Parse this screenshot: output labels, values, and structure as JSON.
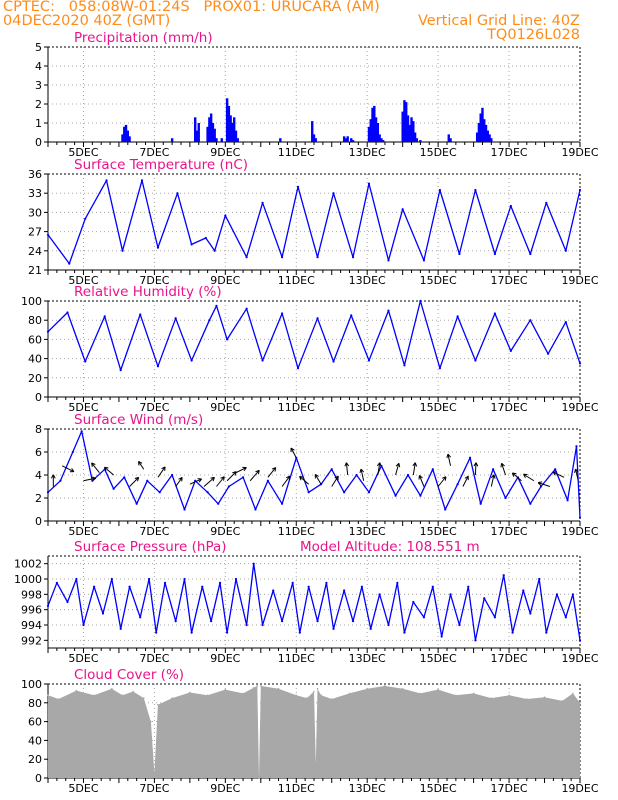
{
  "header": {
    "left_line1": "CPTEC:   058:08W-01:24S   PROX01: URUCARA (AM)",
    "left_line2": "04DEC2020 40Z (GMT)",
    "right_line2": "Vertical Grid Line: 40Z",
    "right_line3": "TQ0126L028"
  },
  "colors": {
    "header": "#ff8c1a",
    "title": "#e8148c",
    "series": "#0000ff",
    "cloud": "#a8a8a8",
    "grid": "#a8a8a8"
  },
  "x_axis": {
    "start_day": 4.0,
    "end_day": 19.0,
    "tick_days": [
      5,
      7,
      9,
      11,
      13,
      15,
      17,
      19
    ],
    "tick_labels": [
      "5DEC",
      "7DEC",
      "9DEC",
      "11DEC",
      "13DEC",
      "15DEC",
      "17DEC",
      "19DEC"
    ]
  },
  "chart_data": [
    {
      "type": "bar",
      "title": "Precipitation (mm/h)",
      "ylim": [
        0,
        5
      ],
      "yticks": [
        0,
        1,
        2,
        3,
        4,
        5
      ],
      "x": [
        6.1,
        6.15,
        6.2,
        6.25,
        6.3,
        7.5,
        8.15,
        8.2,
        8.25,
        8.5,
        8.55,
        8.6,
        8.65,
        8.7,
        8.75,
        8.9,
        9.05,
        9.1,
        9.15,
        9.2,
        9.25,
        9.3,
        9.35,
        10.55,
        11.45,
        11.5,
        11.55,
        12.35,
        12.4,
        12.45,
        12.55,
        12.6,
        13.05,
        13.1,
        13.15,
        13.2,
        13.25,
        13.3,
        13.35,
        13.4,
        13.45,
        14.0,
        14.05,
        14.1,
        14.15,
        14.2,
        14.25,
        14.3,
        14.35,
        14.4,
        14.5,
        15.3,
        15.35,
        16.1,
        16.15,
        16.2,
        16.25,
        16.3,
        16.35,
        16.4,
        16.45,
        16.5
      ],
      "values": [
        0.4,
        0.8,
        0.9,
        0.6,
        0.3,
        0.2,
        1.3,
        0.6,
        1.0,
        0.8,
        1.3,
        1.5,
        1.0,
        0.7,
        0.2,
        0.2,
        2.3,
        1.9,
        1.4,
        1.0,
        1.3,
        0.6,
        0.2,
        0.2,
        1.1,
        0.4,
        0.2,
        0.3,
        0.2,
        0.3,
        0.2,
        0.1,
        0.8,
        1.2,
        1.8,
        1.9,
        1.3,
        1.0,
        0.4,
        0.2,
        0.1,
        1.6,
        2.2,
        2.1,
        1.4,
        0.9,
        1.3,
        1.1,
        0.5,
        0.2,
        0.1,
        0.4,
        0.2,
        0.5,
        1.0,
        1.5,
        1.8,
        1.2,
        0.9,
        0.6,
        0.4,
        0.2
      ]
    },
    {
      "type": "line",
      "title": "Surface Temperature (nC)",
      "ylim": [
        21,
        36
      ],
      "yticks": [
        21,
        24,
        27,
        30,
        33,
        36
      ],
      "x": [
        4.0,
        4.6,
        5.05,
        5.65,
        6.1,
        6.65,
        7.1,
        7.65,
        8.05,
        8.45,
        8.7,
        9.0,
        9.6,
        10.05,
        10.6,
        11.05,
        11.6,
        12.05,
        12.6,
        13.05,
        13.6,
        14.0,
        14.6,
        15.05,
        15.6,
        16.05,
        16.6,
        17.05,
        17.6,
        18.05,
        18.6,
        19.0
      ],
      "values": [
        26.5,
        22.0,
        29.0,
        35.0,
        24.0,
        35.0,
        24.5,
        33.0,
        25.0,
        26.0,
        24.0,
        29.5,
        23.0,
        31.5,
        23.0,
        34.0,
        23.0,
        33.0,
        23.0,
        34.5,
        22.5,
        30.5,
        22.5,
        33.5,
        23.5,
        33.5,
        23.5,
        31.0,
        23.5,
        31.5,
        24.0,
        33.5
      ]
    },
    {
      "type": "line",
      "title": "Relative Humidity (%)",
      "ylim": [
        0,
        100
      ],
      "yticks": [
        0,
        20,
        40,
        60,
        80,
        100
      ],
      "x": [
        4.0,
        4.55,
        5.05,
        5.6,
        6.05,
        6.6,
        7.1,
        7.6,
        8.05,
        8.55,
        8.75,
        9.05,
        9.6,
        10.05,
        10.6,
        11.05,
        11.6,
        12.05,
        12.55,
        13.05,
        13.6,
        14.05,
        14.5,
        15.05,
        15.55,
        16.05,
        16.6,
        17.05,
        17.6,
        18.1,
        18.6,
        19.0
      ],
      "values": [
        68.0,
        88.0,
        37.0,
        84.0,
        28.0,
        86.0,
        32.0,
        82.0,
        38.0,
        80.0,
        95.0,
        60.0,
        92.0,
        38.0,
        87.0,
        30.0,
        82.0,
        37.0,
        85.0,
        38.0,
        90.0,
        33.0,
        100.0,
        30.0,
        84.0,
        38.0,
        87.0,
        48.0,
        80.0,
        45.0,
        78.0,
        35.0
      ]
    },
    {
      "type": "line",
      "title": "Surface Wind (m/s)",
      "ylim": [
        0,
        8
      ],
      "yticks": [
        0,
        2,
        4,
        6,
        8
      ],
      "x": [
        4.0,
        4.35,
        4.7,
        4.95,
        5.25,
        5.6,
        5.85,
        6.15,
        6.5,
        6.8,
        7.15,
        7.5,
        7.85,
        8.15,
        8.5,
        8.8,
        9.1,
        9.5,
        9.85,
        10.2,
        10.6,
        11.0,
        11.35,
        11.7,
        12.0,
        12.35,
        12.7,
        13.05,
        13.4,
        13.8,
        14.15,
        14.5,
        14.85,
        15.2,
        15.55,
        15.9,
        16.2,
        16.55,
        16.9,
        17.25,
        17.6,
        17.9,
        18.3,
        18.65,
        18.9,
        19.0
      ],
      "values": [
        2.5,
        3.5,
        6.0,
        7.8,
        3.5,
        4.5,
        2.8,
        3.8,
        1.5,
        3.5,
        2.5,
        4.0,
        1.0,
        3.5,
        2.5,
        1.5,
        3.0,
        3.8,
        1.0,
        3.5,
        1.5,
        5.5,
        2.5,
        3.2,
        4.5,
        2.5,
        4.0,
        2.5,
        4.8,
        2.2,
        4.0,
        2.2,
        4.5,
        1.0,
        3.2,
        5.5,
        1.5,
        4.5,
        2.0,
        3.8,
        1.5,
        3.0,
        4.5,
        1.8,
        6.5,
        0.3
      ],
      "arrows": [
        [
          4.15,
          3.0,
          0.0,
          0.9
        ],
        [
          4.4,
          4.8,
          0.9,
          -0.45
        ],
        [
          5.0,
          3.5,
          0.95,
          0.2
        ],
        [
          5.45,
          4.2,
          -0.6,
          0.75
        ],
        [
          5.85,
          4.0,
          -0.7,
          0.6
        ],
        [
          6.3,
          3.0,
          0.7,
          0.7
        ],
        [
          6.7,
          4.5,
          -0.4,
          0.6
        ],
        [
          7.1,
          3.8,
          0.55,
          0.8
        ],
        [
          7.6,
          3.0,
          0.5,
          0.7
        ],
        [
          8.0,
          3.2,
          0.9,
          0.4
        ],
        [
          8.4,
          3.0,
          0.8,
          0.7
        ],
        [
          8.75,
          3.0,
          0.6,
          0.75
        ],
        [
          9.05,
          3.5,
          0.7,
          0.7
        ],
        [
          9.3,
          4.2,
          0.8,
          0.4
        ],
        [
          9.7,
          3.5,
          0.7,
          0.8
        ],
        [
          10.2,
          3.8,
          0.6,
          0.75
        ],
        [
          10.6,
          3.0,
          0.6,
          0.8
        ],
        [
          11.0,
          5.5,
          -0.4,
          0.75
        ],
        [
          11.35,
          3.2,
          -0.7,
          0.6
        ],
        [
          11.7,
          3.2,
          -0.45,
          0.75
        ],
        [
          12.0,
          3.0,
          0.5,
          0.8
        ],
        [
          12.45,
          4.0,
          -0.1,
          0.95
        ],
        [
          12.9,
          3.5,
          -0.2,
          0.9
        ],
        [
          13.3,
          4.0,
          0.15,
          0.95
        ],
        [
          13.8,
          4.0,
          0.25,
          0.9
        ],
        [
          14.3,
          4.0,
          0.15,
          0.95
        ],
        [
          14.6,
          3.0,
          -0.35,
          0.85
        ],
        [
          15.0,
          3.0,
          0.6,
          0.75
        ],
        [
          15.35,
          4.8,
          -0.2,
          0.9
        ],
        [
          15.7,
          3.0,
          0.4,
          0.8
        ],
        [
          16.05,
          4.0,
          0.05,
          0.95
        ],
        [
          16.5,
          3.0,
          0.2,
          0.9
        ],
        [
          16.9,
          4.0,
          -0.3,
          0.9
        ],
        [
          17.35,
          3.5,
          -0.7,
          0.6
        ],
        [
          17.7,
          3.5,
          -0.8,
          0.5
        ],
        [
          18.15,
          3.0,
          -0.9,
          0.3
        ],
        [
          18.55,
          3.8,
          -0.85,
          0.4
        ],
        [
          18.95,
          3.5,
          -0.2,
          0.9
        ]
      ]
    },
    {
      "type": "line",
      "title": "Surface Pressure (hPa)",
      "annotation": "Model Altitude: 108.551 m",
      "ylim": [
        991,
        1003
      ],
      "yticks": [
        992,
        994,
        996,
        998,
        1000,
        1002
      ],
      "x": [
        4.0,
        4.25,
        4.55,
        4.8,
        5.0,
        5.3,
        5.55,
        5.8,
        6.05,
        6.3,
        6.6,
        6.85,
        7.05,
        7.3,
        7.6,
        7.85,
        8.05,
        8.35,
        8.6,
        8.85,
        9.05,
        9.3,
        9.6,
        9.8,
        10.05,
        10.35,
        10.6,
        10.9,
        11.1,
        11.35,
        11.6,
        11.85,
        12.05,
        12.35,
        12.6,
        12.85,
        13.1,
        13.35,
        13.6,
        13.85,
        14.05,
        14.3,
        14.6,
        14.85,
        15.1,
        15.35,
        15.6,
        15.85,
        16.05,
        16.3,
        16.6,
        16.85,
        17.1,
        17.4,
        17.6,
        17.85,
        18.05,
        18.35,
        18.6,
        18.8,
        19.0
      ],
      "values": [
        996.5,
        999.5,
        997.0,
        1000.0,
        994.0,
        999.0,
        995.5,
        1000.0,
        993.5,
        999.0,
        995.0,
        1000.0,
        993.0,
        999.5,
        994.5,
        1000.0,
        993.0,
        999.0,
        994.5,
        999.5,
        993.0,
        1000.0,
        994.0,
        1002.0,
        994.0,
        998.5,
        994.5,
        999.5,
        993.0,
        999.0,
        994.5,
        999.5,
        993.5,
        998.5,
        994.5,
        999.0,
        993.5,
        998.0,
        994.0,
        999.5,
        993.0,
        997.0,
        995.0,
        999.0,
        992.5,
        998.0,
        994.0,
        999.0,
        992.0,
        997.5,
        995.0,
        1000.5,
        993.0,
        998.5,
        995.5,
        1000.0,
        993.0,
        998.0,
        995.0,
        998.0,
        992.0
      ]
    },
    {
      "type": "area",
      "title": "Cloud Cover (%)",
      "ylim": [
        0,
        100
      ],
      "yticks": [
        0,
        20,
        40,
        60,
        80,
        100
      ],
      "x": [
        4.0,
        4.3,
        4.8,
        5.3,
        5.8,
        6.1,
        6.4,
        6.7,
        6.9,
        7.0,
        7.1,
        7.5,
        8.0,
        8.5,
        9.0,
        9.5,
        9.8,
        9.9,
        9.95,
        10.0,
        10.5,
        11.0,
        11.3,
        11.5,
        11.55,
        11.6,
        11.7,
        12.0,
        12.5,
        13.0,
        13.5,
        14.0,
        14.5,
        15.0,
        15.5,
        16.0,
        16.5,
        17.0,
        17.5,
        18.0,
        18.5,
        18.8,
        19.0
      ],
      "values": [
        88.0,
        84.0,
        93.0,
        88.0,
        95.0,
        88.0,
        92.0,
        85.0,
        60.0,
        5.0,
        78.0,
        85.0,
        91.0,
        88.0,
        94.0,
        90.0,
        96.0,
        98.0,
        0.0,
        98.0,
        95.0,
        88.0,
        85.0,
        92.0,
        15.0,
        95.0,
        88.0,
        84.0,
        90.0,
        95.0,
        98.0,
        95.0,
        90.0,
        94.0,
        88.0,
        90.0,
        85.0,
        88.0,
        84.0,
        86.0,
        82.0,
        90.0,
        80.0
      ]
    }
  ]
}
